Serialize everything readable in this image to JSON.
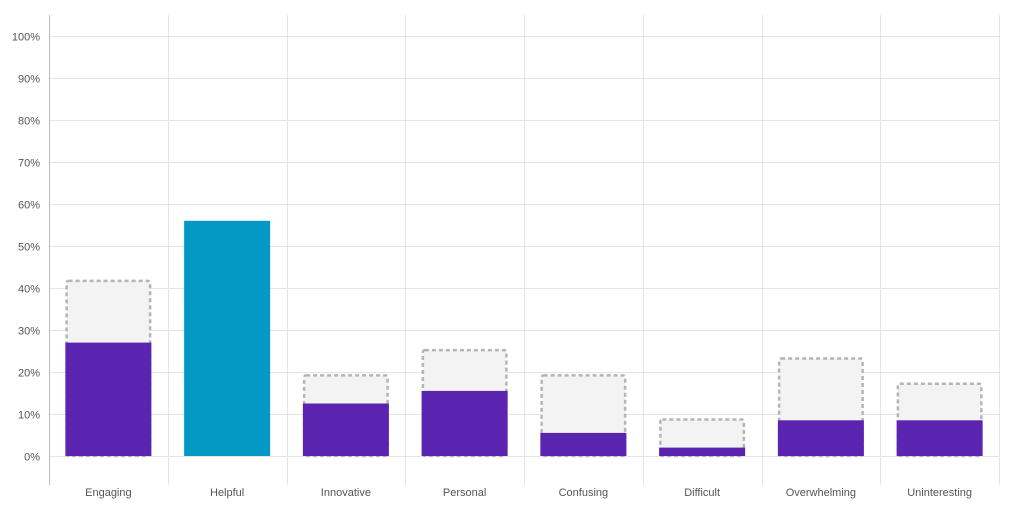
{
  "chart_data": {
    "type": "bar",
    "categories": [
      "Engaging",
      "Helpful",
      "Innovative",
      "Personal",
      "Confusing",
      "Difficult",
      "Overwhelming",
      "Uninteresting"
    ],
    "series": [
      {
        "values": [
          27,
          56,
          12.5,
          15.5,
          5.5,
          2,
          8.5,
          8.5
        ]
      },
      {
        "values": [
          42,
          null,
          19.5,
          25.5,
          19.5,
          9,
          23.5,
          17.5
        ]
      }
    ],
    "highlight_category": "Helpful",
    "ylim": [
      0,
      100
    ],
    "yticks": [
      "0%",
      "10%",
      "20%",
      "30%",
      "40%",
      "50%",
      "60%",
      "70%",
      "80%",
      "90%",
      "100%"
    ],
    "grid": true,
    "xlabel": "",
    "ylabel": "",
    "colors": {
      "bar": "#5b24b0",
      "highlight": "#0399c4",
      "comparison_fill": "#f3f3f3",
      "comparison_border": "#b5b5b5",
      "grid": "#e4e4e4",
      "axis": "#bdbdbd"
    }
  }
}
